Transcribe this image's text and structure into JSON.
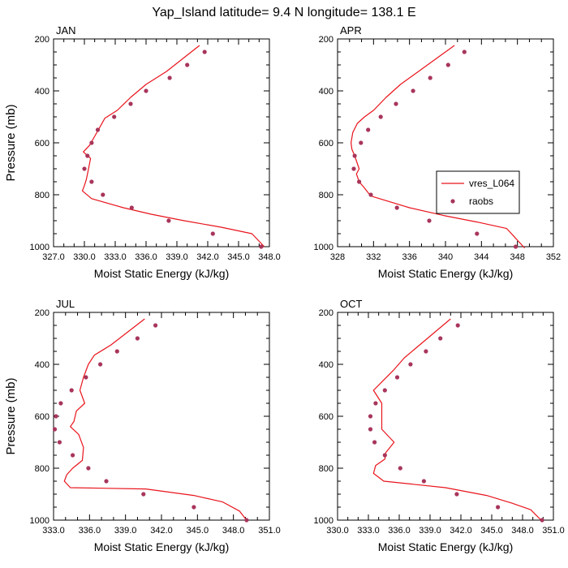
{
  "title": "Yap_Island  latitude= 9.4 N longitude= 138.1 E",
  "colors": {
    "model": "#e8141c",
    "obs": "#a8355a"
  },
  "chart_data": [
    {
      "type": "line",
      "panel": "JAN",
      "xlabel": "Moist Static Energy (kJ/kg)",
      "ylabel": "Pressure (mb)",
      "xlim": [
        327.0,
        348.0
      ],
      "ylim": [
        1000,
        200
      ],
      "xticks": [
        "327.0",
        "330.0",
        "333.0",
        "336.0",
        "339.0",
        "342.0",
        "345.0",
        "348.0"
      ],
      "xtick_values": [
        327,
        330,
        333,
        336,
        339,
        342,
        345,
        348
      ],
      "yticks": [
        "200",
        "400",
        "600",
        "800",
        "1000"
      ],
      "ytick_values": [
        200,
        400,
        600,
        800,
        1000
      ],
      "legend": null,
      "series": [
        {
          "name": "vres_L064",
          "kind": "line",
          "x": [
            341.2,
            339.6,
            338.0,
            336.0,
            334.5,
            333.2,
            332.0,
            331.5,
            331.0,
            330.5,
            329.9,
            330.6,
            330.4,
            330.2,
            330.0,
            329.8,
            330.7,
            333.8,
            336.5,
            339.7,
            343.3,
            346.3,
            347.5
          ],
          "y": [
            225,
            275,
            325,
            375,
            425,
            475,
            505,
            540,
            575,
            610,
            635,
            660,
            700,
            740,
            765,
            785,
            815,
            850,
            875,
            900,
            925,
            950,
            1000
          ]
        },
        {
          "name": "raobs",
          "kind": "scatter",
          "x": [
            341.7,
            340.0,
            338.3,
            336.0,
            334.5,
            332.9,
            331.3,
            330.7,
            330.3,
            330.0,
            330.7,
            331.8,
            334.6,
            338.2,
            342.5,
            347.2
          ],
          "y": [
            250,
            300,
            350,
            400,
            450,
            500,
            550,
            600,
            650,
            700,
            750,
            800,
            850,
            900,
            950,
            1000
          ]
        }
      ]
    },
    {
      "type": "line",
      "panel": "APR",
      "xlabel": "Moist Static Energy (kJ/kg)",
      "ylabel": "",
      "xlim": [
        328,
        352
      ],
      "ylim": [
        1000,
        200
      ],
      "xticks": [
        "328",
        "332",
        "336",
        "340",
        "344",
        "348",
        "352"
      ],
      "xtick_values": [
        328,
        332,
        336,
        340,
        344,
        348,
        352
      ],
      "yticks": [
        "200",
        "400",
        "600",
        "800",
        "1000"
      ],
      "ytick_values": [
        200,
        400,
        600,
        800,
        1000
      ],
      "legend": [
        "vres_L064",
        "raobs"
      ],
      "series": [
        {
          "name": "vres_L064",
          "kind": "line",
          "x": [
            341.0,
            339.0,
            337.0,
            335.0,
            333.4,
            332.0,
            331.0,
            330.2,
            329.7,
            329.5,
            329.6,
            329.9,
            330.4,
            330.1,
            330.4,
            330.9,
            331.7,
            336.0,
            339.8,
            343.5,
            346.8,
            348.8
          ],
          "y": [
            225,
            275,
            325,
            375,
            425,
            475,
            500,
            525,
            560,
            600,
            625,
            650,
            700,
            720,
            750,
            770,
            805,
            850,
            880,
            905,
            930,
            1005
          ]
        },
        {
          "name": "raobs",
          "kind": "scatter",
          "x": [
            342.1,
            340.3,
            338.3,
            336.4,
            334.5,
            332.8,
            331.4,
            330.6,
            329.9,
            329.8,
            330.4,
            331.7,
            334.6,
            338.2,
            343.5,
            347.8
          ],
          "y": [
            250,
            300,
            350,
            400,
            450,
            500,
            550,
            600,
            650,
            700,
            750,
            800,
            850,
            900,
            950,
            1000
          ]
        }
      ]
    },
    {
      "type": "line",
      "panel": "JUL",
      "xlabel": "Moist Static Energy (kJ/kg)",
      "ylabel": "Pressure (mb)",
      "xlim": [
        333.0,
        351.0
      ],
      "ylim": [
        1000,
        200
      ],
      "xticks": [
        "333.0",
        "336.0",
        "339.0",
        "342.0",
        "345.0",
        "348.0",
        "351.0"
      ],
      "xtick_values": [
        333,
        336,
        339,
        342,
        345,
        348,
        351
      ],
      "yticks": [
        "200",
        "400",
        "600",
        "800",
        "1000"
      ],
      "ytick_values": [
        200,
        400,
        600,
        800,
        1000
      ],
      "legend": null,
      "series": [
        {
          "name": "vres_L064",
          "kind": "line",
          "x": [
            340.6,
            339.2,
            337.8,
            336.4,
            335.9,
            335.5,
            335.2,
            335.6,
            334.9,
            334.7,
            334.4,
            335.1,
            335.5,
            335.4,
            334.6,
            334.1,
            333.9,
            334.4,
            340.7,
            344.7,
            347.1,
            348.5,
            349.1
          ],
          "y": [
            225,
            275,
            325,
            365,
            400,
            450,
            500,
            550,
            580,
            620,
            640,
            670,
            720,
            770,
            800,
            825,
            850,
            875,
            880,
            905,
            930,
            965,
            1000
          ]
        },
        {
          "name": "raobs",
          "kind": "scatter",
          "x": [
            341.5,
            340.0,
            338.3,
            336.9,
            335.7,
            334.5,
            333.6,
            333.2,
            333.1,
            333.5,
            334.6,
            335.9,
            337.4,
            340.5,
            344.7,
            349.1
          ],
          "y": [
            250,
            300,
            350,
            400,
            450,
            500,
            550,
            600,
            650,
            700,
            750,
            800,
            850,
            900,
            950,
            1000
          ]
        }
      ]
    },
    {
      "type": "line",
      "panel": "OCT",
      "xlabel": "Moist Static Energy (kJ/kg)",
      "ylabel": "",
      "xlim": [
        330.0,
        351.0
      ],
      "ylim": [
        1000,
        200
      ],
      "xticks": [
        "330.0",
        "333.0",
        "336.0",
        "339.0",
        "342.0",
        "345.0",
        "348.0",
        "351.0"
      ],
      "xtick_values": [
        330,
        333,
        336,
        339,
        342,
        345,
        348,
        351
      ],
      "yticks": [
        "200",
        "400",
        "600",
        "800",
        "1000"
      ],
      "ytick_values": [
        200,
        400,
        600,
        800,
        1000
      ],
      "legend": null,
      "series": [
        {
          "name": "vres_L064",
          "kind": "line",
          "x": [
            341.0,
            339.5,
            338.0,
            336.5,
            335.5,
            334.5,
            333.5,
            334.3,
            334.3,
            334.3,
            335.5,
            334.7,
            334.6,
            333.7,
            333.5,
            334.5,
            340.5,
            344.5,
            347.0,
            348.8,
            349.8
          ],
          "y": [
            225,
            275,
            325,
            375,
            420,
            460,
            500,
            550,
            600,
            650,
            700,
            740,
            765,
            790,
            820,
            850,
            875,
            905,
            935,
            960,
            1000
          ]
        },
        {
          "name": "raobs",
          "kind": "scatter",
          "x": [
            341.7,
            340.0,
            338.6,
            337.1,
            335.8,
            334.6,
            333.7,
            333.2,
            333.2,
            333.6,
            334.6,
            336.1,
            338.4,
            341.6,
            345.6,
            349.9
          ],
          "y": [
            250,
            300,
            350,
            400,
            450,
            500,
            550,
            600,
            650,
            700,
            750,
            800,
            850,
            900,
            950,
            1000
          ]
        }
      ]
    }
  ]
}
